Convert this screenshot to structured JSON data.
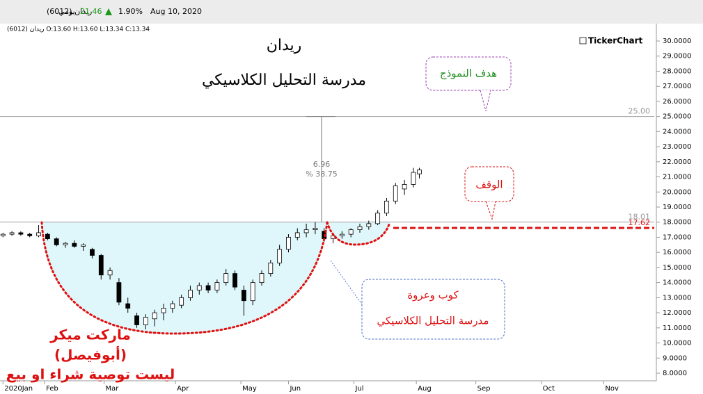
{
  "chart_data": {
    "type": "candlestick",
    "header": {
      "symbol": "ريدان (6012)",
      "period": "يومي",
      "last": "21.46",
      "change": "1.90%",
      "date": "Aug 10, 2020"
    },
    "ohlc_line": "ريدان (6012)  O:13.60  H:13.60  L:13.34  C:13.34",
    "title": "ريدان",
    "subtitle": "مدرسة التحليل الكلاسيكي",
    "brand": "TickerChart",
    "ylim": [
      8,
      30
    ],
    "yticks": [
      {
        "value": 8,
        "label": "8.0000"
      },
      {
        "value": 9,
        "label": "9.0000"
      },
      {
        "value": 10,
        "label": "10.0000"
      },
      {
        "value": 11,
        "label": "11.0000"
      },
      {
        "value": 12,
        "label": "12.0000"
      },
      {
        "value": 13,
        "label": "13.0000"
      },
      {
        "value": 14,
        "label": "14.0000"
      },
      {
        "value": 15,
        "label": "15.0000"
      },
      {
        "value": 16,
        "label": "16.0000"
      },
      {
        "value": 17,
        "label": "17.0000"
      },
      {
        "value": 18,
        "label": "18.0000"
      },
      {
        "value": 19,
        "label": "19.0000"
      },
      {
        "value": 20,
        "label": "20.0000"
      },
      {
        "value": 21,
        "label": "21.0000"
      },
      {
        "value": 22,
        "label": "22.0000"
      },
      {
        "value": 23,
        "label": "23.0000"
      },
      {
        "value": 24,
        "label": "24.0000"
      },
      {
        "value": 25,
        "label": "25.0000"
      },
      {
        "value": 26,
        "label": "26.0000"
      },
      {
        "value": 27,
        "label": "27.0000"
      },
      {
        "value": 28,
        "label": "28.0000"
      },
      {
        "value": 29,
        "label": "29.0000"
      },
      {
        "value": 30,
        "label": "30.0000"
      }
    ],
    "xlim": [
      0,
      220
    ],
    "xticks": [
      {
        "value": 1,
        "label": "2020Jan"
      },
      {
        "value": 15,
        "label": "Feb"
      },
      {
        "value": 35,
        "label": "Mar"
      },
      {
        "value": 59,
        "label": "Apr"
      },
      {
        "value": 81,
        "label": "May"
      },
      {
        "value": 97,
        "label": "Jun"
      },
      {
        "value": 119,
        "label": "Jul"
      },
      {
        "value": 140,
        "label": "Aug"
      },
      {
        "value": 160,
        "label": "Sep"
      },
      {
        "value": 182,
        "label": "Oct"
      },
      {
        "value": 203,
        "label": "Nov"
      }
    ],
    "x": [
      1,
      4,
      7,
      10,
      13,
      16,
      19,
      22,
      25,
      28,
      31,
      34,
      37,
      40,
      43,
      46,
      49,
      52,
      55,
      58,
      61,
      64,
      67,
      70,
      73,
      76,
      79,
      82,
      85,
      88,
      91,
      94,
      97,
      100,
      103,
      106,
      109,
      112,
      115,
      118,
      121,
      124,
      127,
      130,
      133,
      136,
      139,
      141
    ],
    "open": [
      17.1,
      17.2,
      17.3,
      17.2,
      17.1,
      17.2,
      16.9,
      16.5,
      16.6,
      16.4,
      16.2,
      15.8,
      14.5,
      14.0,
      12.6,
      11.8,
      11.2,
      11.6,
      12.0,
      12.3,
      12.5,
      13.0,
      13.5,
      13.8,
      13.5,
      14.0,
      14.6,
      13.5,
      12.8,
      14.0,
      14.6,
      15.3,
      16.2,
      17.0,
      17.3,
      17.5,
      17.4,
      16.9,
      17.1,
      17.2,
      17.5,
      17.7,
      17.9,
      18.6,
      19.4,
      20.2,
      20.5,
      21.2
    ],
    "high": [
      17.3,
      17.4,
      17.4,
      17.3,
      17.8,
      17.3,
      17.0,
      16.7,
      16.8,
      16.6,
      16.3,
      15.9,
      15.0,
      14.3,
      13.0,
      12.0,
      11.9,
      12.2,
      12.6,
      12.8,
      13.2,
      13.8,
      14.0,
      14.0,
      14.2,
      14.9,
      14.8,
      13.8,
      14.2,
      14.8,
      15.5,
      16.5,
      17.2,
      17.6,
      17.9,
      18.0,
      17.6,
      17.3,
      17.4,
      17.6,
      17.9,
      18.1,
      18.8,
      19.6,
      20.6,
      20.8,
      21.6,
      21.6
    ],
    "low": [
      17.0,
      17.1,
      17.1,
      17.0,
      17.0,
      16.8,
      16.4,
      16.3,
      16.3,
      16.1,
      15.6,
      14.2,
      14.2,
      12.5,
      12.0,
      11.0,
      10.9,
      11.1,
      11.5,
      12.0,
      12.3,
      12.8,
      13.2,
      13.3,
      13.3,
      13.8,
      13.5,
      11.8,
      12.5,
      13.8,
      14.4,
      15.1,
      16.0,
      16.8,
      17.0,
      17.2,
      16.7,
      16.6,
      16.9,
      17.0,
      17.3,
      17.5,
      17.8,
      18.4,
      19.2,
      19.8,
      20.3,
      20.9
    ],
    "close": [
      17.2,
      17.3,
      17.2,
      17.1,
      17.3,
      16.9,
      16.5,
      16.6,
      16.4,
      16.5,
      15.8,
      14.5,
      14.8,
      12.7,
      12.3,
      11.2,
      11.7,
      12.0,
      12.3,
      12.6,
      13.0,
      13.5,
      13.8,
      13.5,
      14.0,
      14.6,
      13.7,
      12.8,
      14.0,
      14.6,
      15.3,
      16.2,
      17.0,
      17.3,
      17.5,
      17.6,
      16.9,
      17.1,
      17.2,
      17.5,
      17.7,
      17.9,
      18.6,
      19.4,
      20.4,
      20.5,
      21.3,
      21.46
    ],
    "levels": [
      {
        "value": 25,
        "label": "25.00",
        "color": "#999999"
      },
      {
        "value": 18.01,
        "label": "18.01",
        "color": "#999999"
      },
      {
        "value": 17.62,
        "label": "17.62",
        "color": "#dd1111"
      }
    ],
    "measure": {
      "change": "6.96",
      "percent": "% 38.75"
    },
    "annotations": {
      "target": "هدف النموذج",
      "stop": "الوقف",
      "pattern": "كوب وعروة",
      "school": "مدرسة التحليل الكلاسيكي",
      "author1": "ماركت ميكر",
      "author2": "(أبوفيصل)",
      "disclaimer": "ليست توصية شراء او بيع"
    }
  }
}
